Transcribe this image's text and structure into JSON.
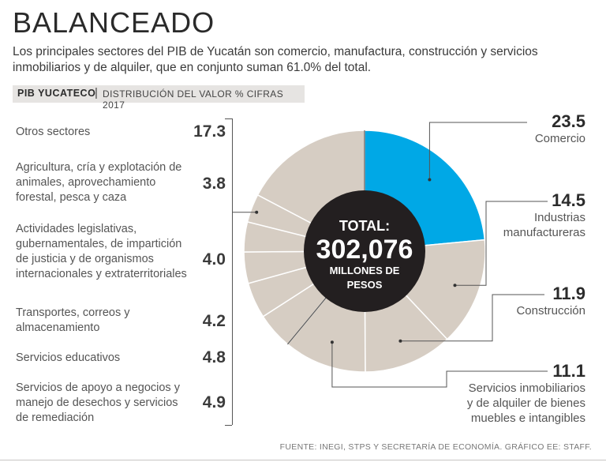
{
  "title": "BALANCEADO",
  "subtitle": "Los principales sectores del PIB de Yucatán son comercio, manufactura, construcción y servicios inmobiliarios y de alquiler, que en conjunto suman 61.0% del total.",
  "header": {
    "label": "PIB YUCATECO",
    "separator": "|",
    "sub": "DISTRIBUCIÓN DEL VALOR % CIFRAS 2017"
  },
  "center": {
    "line1": "TOTAL:",
    "line2": "302,076",
    "line3": "MILLONES DE",
    "line4": "PESOS"
  },
  "source": "FUENTE: INEGI, STPS Y SECRETARÍA DE ECONOMÍA. GRÁFICO EE: STAFF.",
  "colors": {
    "highlight": "#00a8e6",
    "sector": "#d6cdc3",
    "center": "#231f20",
    "divider": "#ffffff"
  },
  "chart_data": {
    "type": "pie",
    "title": "PIB YUCATECO | DISTRIBUCIÓN DEL VALOR % CIFRAS 2017",
    "total_label": "302,076 millones de pesos",
    "main_sectors": [
      {
        "name": "Comercio",
        "value": 23.5,
        "label_lines": [
          "Comercio"
        ]
      },
      {
        "name": "Industrias manufactureras",
        "value": 14.5,
        "label_lines": [
          "Industrias",
          "manufactureras"
        ]
      },
      {
        "name": "Construcción",
        "value": 11.9,
        "label_lines": [
          "Construcción"
        ]
      },
      {
        "name": "Servicios inmobiliarios y de alquiler de bienes muebles e intangibles",
        "value": 11.1,
        "label_lines": [
          "Servicios inmobiliarios",
          "y de alquiler de bienes",
          "muebles e intangibles"
        ]
      }
    ],
    "other_sectors": [
      {
        "name": "Servicios de apoyo a negocios y manejo de desechos y servicios de remediación",
        "value": 4.9
      },
      {
        "name": "Servicios educativos",
        "value": 4.8
      },
      {
        "name": "Transportes, correos y almacenamiento",
        "value": 4.2
      },
      {
        "name": "Actividades legislativas, gubernamentales, de impartición de justicia y de organismos internacionales y extraterritoriales",
        "value": 4.0
      },
      {
        "name": "Agricultura, cría y explotación de animales, aprovechamiento forestal, pesca y caza",
        "value": 3.8
      },
      {
        "name": "Otros sectores",
        "value": 17.3
      }
    ],
    "legend_left": [
      {
        "label": "Otros sectores",
        "value": "17.3"
      },
      {
        "label": "Agricultura, cría y explotación de animales, aprovechamiento forestal, pesca y caza",
        "value": "3.8"
      },
      {
        "label": "Actividades legislativas, gubernamentales, de impartición de justicia y de organismos internacionales y extraterritoriales",
        "value": "4.0"
      },
      {
        "label": "Transportes, correos y almacenamiento",
        "value": "4.2"
      },
      {
        "label": "Servicios educativos",
        "value": "4.8"
      },
      {
        "label": "Servicios de apoyo a negocios y manejo de desechos y servicios de remediación",
        "value": "4.9"
      }
    ],
    "legend_right": [
      {
        "value": "23.5",
        "label": "Comercio"
      },
      {
        "value": "14.5",
        "label": "Industrias manufactureras"
      },
      {
        "value": "11.9",
        "label": "Construcción"
      },
      {
        "value": "11.1",
        "label": "Servicios inmobiliarios y de alquiler de bienes muebles e intangibles"
      }
    ]
  }
}
